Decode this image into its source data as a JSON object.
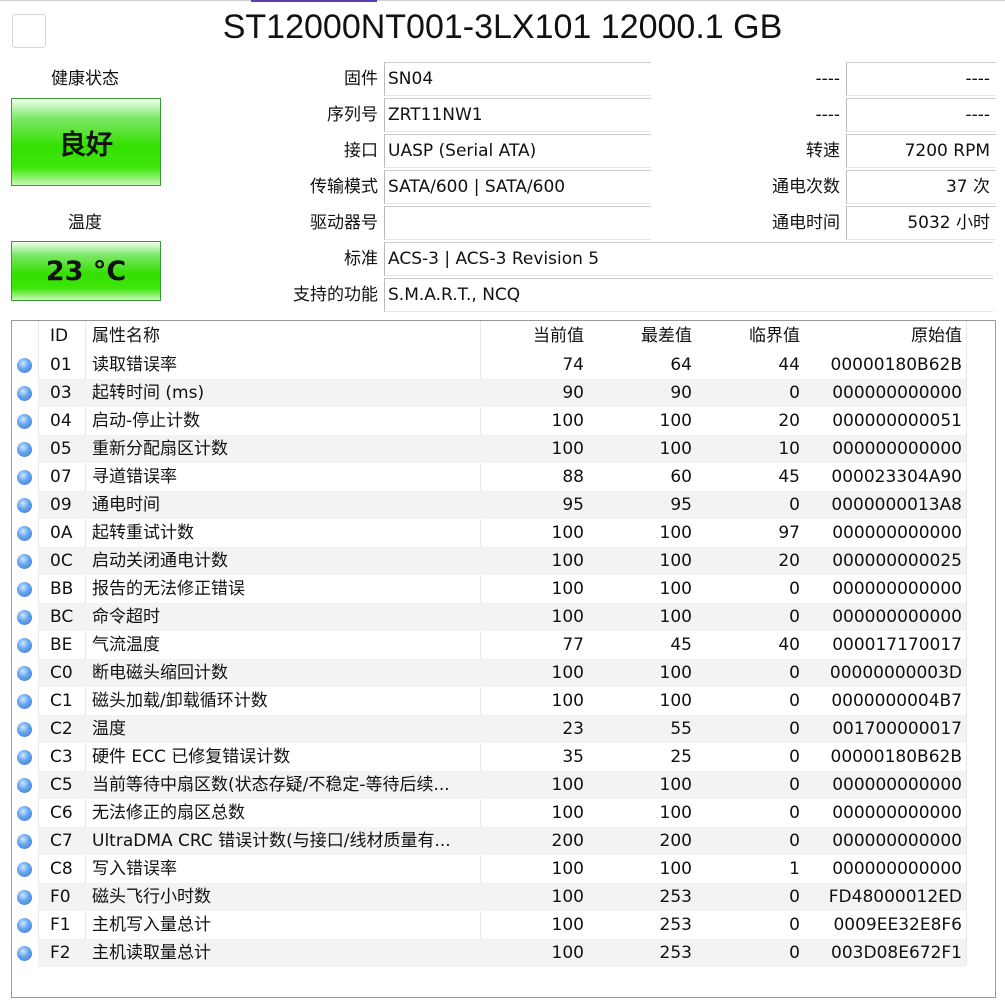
{
  "title": "ST12000NT001-3LX101 12000.1 GB",
  "health": {
    "label": "健康状态",
    "value": "良好",
    "color": "#33e000"
  },
  "temperature": {
    "label": "温度",
    "value": "23 °C"
  },
  "info": [
    {
      "label": "固件",
      "value": "SN04"
    },
    {
      "label": "序列号",
      "value": "ZRT11NW1"
    },
    {
      "label": "接口",
      "value": "UASP (Serial ATA)"
    },
    {
      "label": "传输模式",
      "value": "SATA/600 | SATA/600"
    },
    {
      "label": "驱动器号",
      "value": ""
    },
    {
      "label": "标准",
      "value": "ACS-3 | ACS-3 Revision 5"
    },
    {
      "label": "支持的功能",
      "value": "S.M.A.R.T., NCQ"
    }
  ],
  "right_info": [
    {
      "label": "----",
      "value": "----"
    },
    {
      "label": "----",
      "value": "----"
    },
    {
      "label": "转速",
      "value": "7200 RPM"
    },
    {
      "label": "通电次数",
      "value": "37 次"
    },
    {
      "label": "通电时间",
      "value": "5032 小时"
    }
  ],
  "table": {
    "headers": {
      "id": "ID",
      "name": "属性名称",
      "current": "当前值",
      "worst": "最差值",
      "threshold": "临界值",
      "raw": "原始值"
    },
    "status_icon": "blue-circle-icon",
    "rows": [
      [
        "01",
        "读取错误率",
        "74",
        "64",
        "44",
        "00000180B62B"
      ],
      [
        "03",
        "起转时间 (ms)",
        "90",
        "90",
        "0",
        "000000000000"
      ],
      [
        "04",
        "启动-停止计数",
        "100",
        "100",
        "20",
        "000000000051"
      ],
      [
        "05",
        "重新分配扇区计数",
        "100",
        "100",
        "10",
        "000000000000"
      ],
      [
        "07",
        "寻道错误率",
        "88",
        "60",
        "45",
        "000023304A90"
      ],
      [
        "09",
        "通电时间",
        "95",
        "95",
        "0",
        "0000000013A8"
      ],
      [
        "0A",
        "起转重试计数",
        "100",
        "100",
        "97",
        "000000000000"
      ],
      [
        "0C",
        "启动关闭通电计数",
        "100",
        "100",
        "20",
        "000000000025"
      ],
      [
        "BB",
        "报告的无法修正错误",
        "100",
        "100",
        "0",
        "000000000000"
      ],
      [
        "BC",
        "命令超时",
        "100",
        "100",
        "0",
        "000000000000"
      ],
      [
        "BE",
        "气流温度",
        "77",
        "45",
        "40",
        "000017170017"
      ],
      [
        "C0",
        "断电磁头缩回计数",
        "100",
        "100",
        "0",
        "00000000003D"
      ],
      [
        "C1",
        "磁头加载/卸载循环计数",
        "100",
        "100",
        "0",
        "0000000004B7"
      ],
      [
        "C2",
        "温度",
        "23",
        "55",
        "0",
        "001700000017"
      ],
      [
        "C3",
        "硬件 ECC 已修复错误计数",
        "35",
        "25",
        "0",
        "00000180B62B"
      ],
      [
        "C5",
        "当前等待中扇区数(状态存疑/不稳定-等待后续...",
        "100",
        "100",
        "0",
        "000000000000"
      ],
      [
        "C6",
        "无法修正的扇区总数",
        "100",
        "100",
        "0",
        "000000000000"
      ],
      [
        "C7",
        "UltraDMA CRC 错误计数(与接口/线材质量有...",
        "200",
        "200",
        "0",
        "000000000000"
      ],
      [
        "C8",
        "写入错误率",
        "100",
        "100",
        "1",
        "000000000000"
      ],
      [
        "F0",
        "磁头飞行小时数",
        "100",
        "253",
        "0",
        "FD48000012ED"
      ],
      [
        "F1",
        "主机写入量总计",
        "100",
        "253",
        "0",
        "0009EE32E8F6"
      ],
      [
        "F2",
        "主机读取量总计",
        "100",
        "253",
        "0",
        "003D08E672F1"
      ]
    ]
  }
}
